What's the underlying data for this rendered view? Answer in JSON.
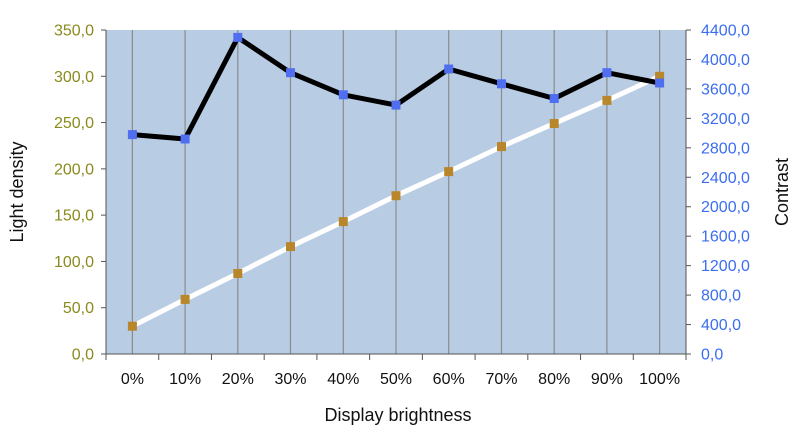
{
  "chart_data": {
    "type": "line",
    "title": "",
    "xlabel": "Display brightness",
    "ylabel_left": "Light density",
    "ylabel_right": "Contrast",
    "categories": [
      "0%",
      "10%",
      "20%",
      "30%",
      "40%",
      "50%",
      "60%",
      "70%",
      "80%",
      "90%",
      "100%"
    ],
    "ylim_left": [
      0,
      350
    ],
    "ylim_right": [
      0,
      4400
    ],
    "yticks_left": [
      "0,0",
      "50,0",
      "100,0",
      "150,0",
      "200,0",
      "250,0",
      "300,0",
      "350,0"
    ],
    "yticks_right": [
      "0,0",
      "400,0",
      "800,0",
      "1200,0",
      "1600,0",
      "2000,0",
      "2400,0",
      "2800,0",
      "3200,0",
      "3600,0",
      "4000,0",
      "4400,0"
    ],
    "grid": true,
    "legend": "none",
    "series": [
      {
        "axis": "left",
        "values": [
          30,
          59,
          87,
          116,
          143,
          171,
          197,
          224,
          249,
          274,
          300
        ],
        "line_color": "#ffffff",
        "marker_color": "#b8862b"
      },
      {
        "axis": "right",
        "values": [
          2980,
          2920,
          4300,
          3820,
          3520,
          3380,
          3870,
          3670,
          3470,
          3820,
          3680
        ],
        "line_color": "#000000",
        "marker_color": "#4f6ff0"
      }
    ],
    "colors": {
      "plot_background": "#b8cce4",
      "grid": "#8c8c8c",
      "left_axis_text": "#8a8a1e",
      "right_axis_text": "#3a6df0"
    }
  }
}
